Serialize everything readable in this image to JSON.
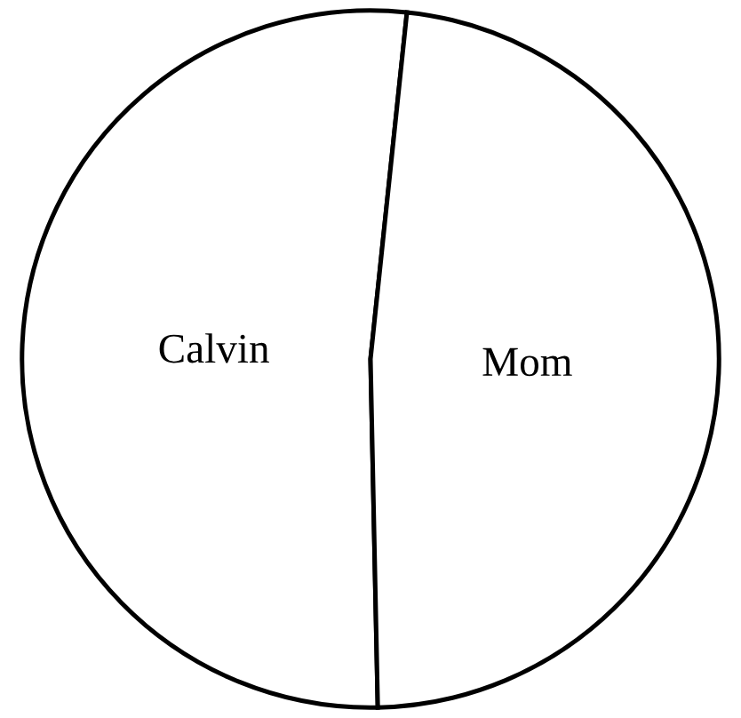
{
  "chart_data": {
    "type": "pie",
    "categories": [
      "Calvin",
      "Mom"
    ],
    "values": [
      52,
      48
    ],
    "colors": [
      "#ffffff",
      "#ffffff"
    ],
    "legend": false
  }
}
